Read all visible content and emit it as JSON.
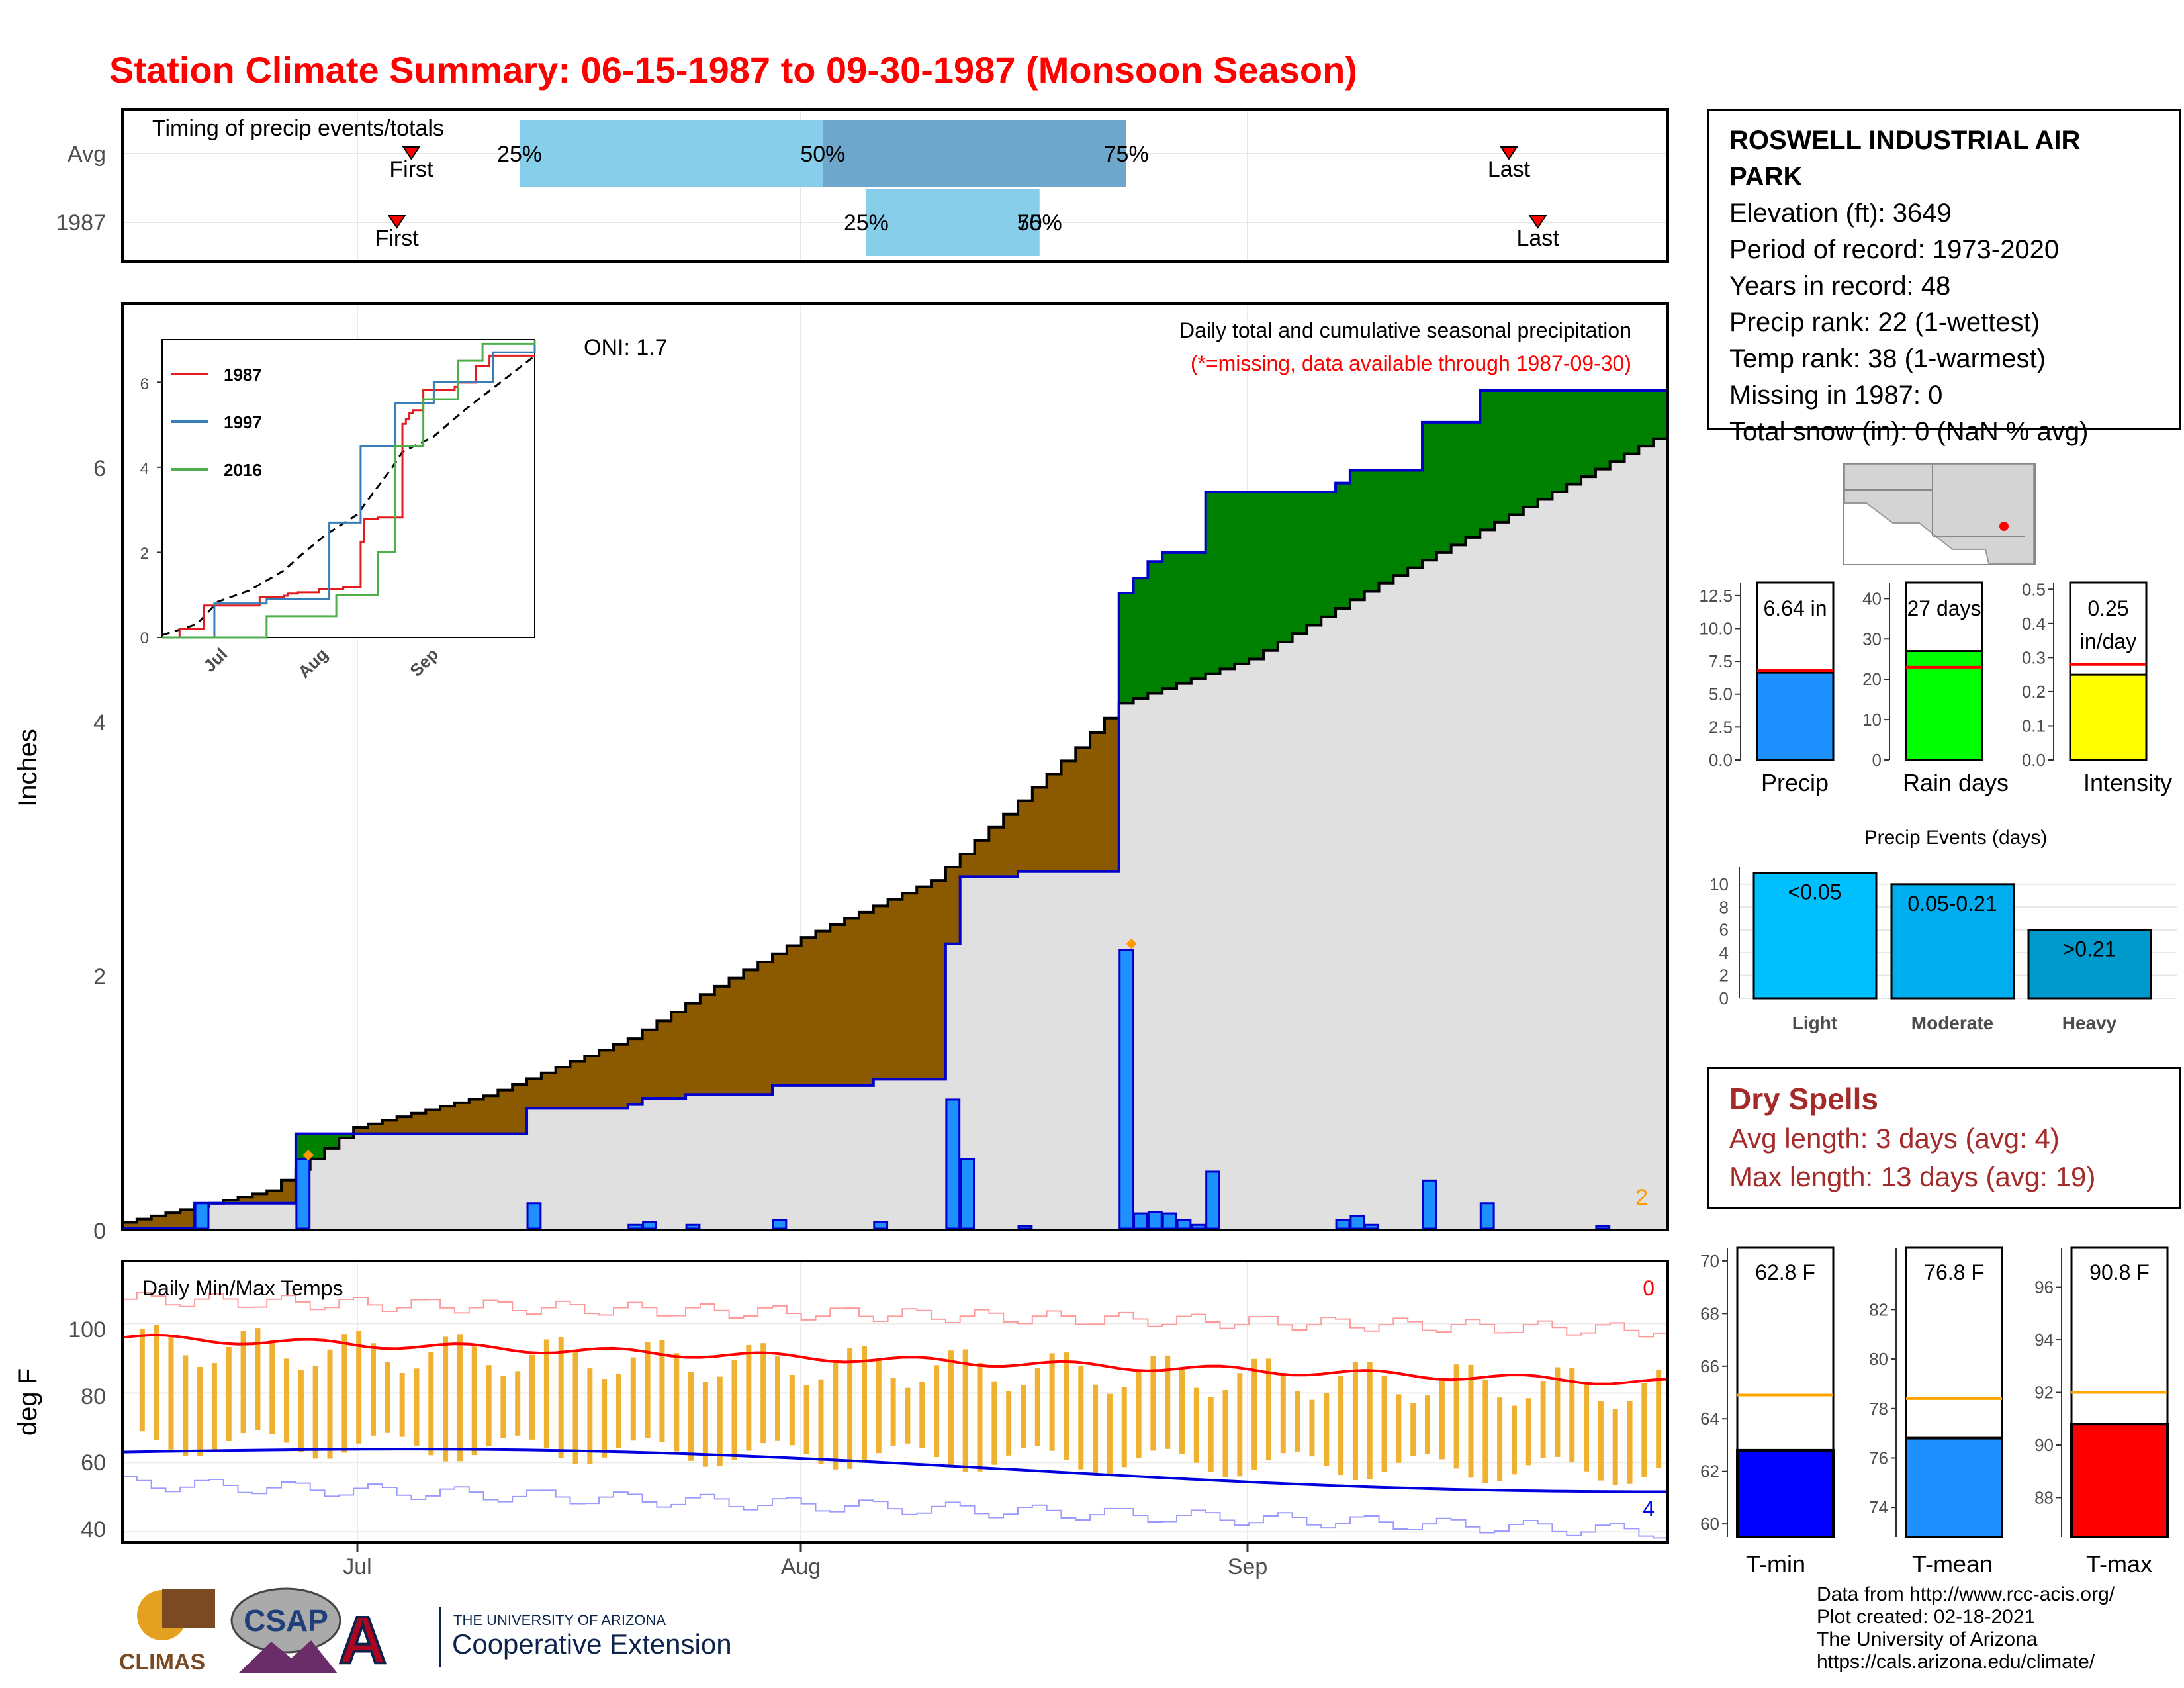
{
  "title": "Station Climate Summary: 06-15-1987 to 09-30-1987 (Monsoon Season)",
  "timing": {
    "title": "Timing of precip events/totals",
    "rows": [
      {
        "label": "Avg",
        "first_label": "First",
        "last_label": "Last",
        "first_day": 20,
        "last_day": 96,
        "p25_label": "25%",
        "p50_label": "50%",
        "p75_label": "75%",
        "p25": 27.5,
        "p50": 48.5,
        "p75": 69.5
      },
      {
        "label": "1987",
        "first_label": "First",
        "last_label": "Last",
        "first_day": 19,
        "last_day": 98,
        "p25_label": "25%",
        "p50_label": "50%",
        "p75_label": "75%",
        "p25": 51.5,
        "p50": 63.5,
        "p75": 63.5
      }
    ]
  },
  "months": [
    "Jul",
    "Aug",
    "Sep"
  ],
  "precip_panel": {
    "ylabel": "Inches",
    "oni": "ONI: 1.7",
    "note1": "Daily total and cumulative seasonal precipitation",
    "note2": "(*=missing, data available through 1987-09-30)",
    "missing_count": "2",
    "yticks": [
      "0",
      "2",
      "4",
      "6"
    ]
  },
  "inset": {
    "yticks": [
      "0",
      "2",
      "4",
      "6"
    ],
    "months": [
      "Jul",
      "Aug",
      "Sep"
    ],
    "legend": [
      {
        "name": "1987",
        "color": "#e41a1c"
      },
      {
        "name": "1997",
        "color": "#377eb8"
      },
      {
        "name": "2016",
        "color": "#4daf4a"
      }
    ]
  },
  "temp_panel": {
    "title": "Daily Min/Max Temps",
    "ylabel": "deg F",
    "yticks": [
      "40",
      "60",
      "80",
      "100"
    ],
    "count_max": "0",
    "count_min": "4"
  },
  "station": {
    "name_line1": "ROSWELL INDUSTRIAL AIR",
    "name_line2": "PARK",
    "elevation": "Elevation (ft): 3649",
    "period": "Period of record: 1973-2020",
    "years": "Years in record: 48",
    "precip_rank": "Precip rank: 22 (1-wettest)",
    "temp_rank": "Temp rank: 38 (1-warmest)",
    "missing": "Missing in 1987: 0",
    "snow": "Total snow (in): 0 (NaN % avg)"
  },
  "summary_bars": [
    {
      "label": "Precip",
      "value_text": "6.64 in",
      "value": 6.64,
      "avg": 6.8,
      "max": 13.5,
      "ticks": [
        "0.0",
        "2.5",
        "5.0",
        "7.5",
        "10.0",
        "12.5"
      ],
      "tickvals": [
        0,
        2.5,
        5,
        7.5,
        10,
        12.5
      ],
      "color": "#1e90ff"
    },
    {
      "label": "Rain days",
      "value_text": "27 days",
      "value": 27,
      "avg": 23,
      "max": 44,
      "ticks": [
        "0",
        "10",
        "20",
        "30",
        "40"
      ],
      "tickvals": [
        0,
        10,
        20,
        30,
        40
      ],
      "color": "#00ff00"
    },
    {
      "label": "Intensity",
      "value_text": "0.25",
      "value_text2": "in/day",
      "value": 0.25,
      "avg": 0.28,
      "max": 0.52,
      "ticks": [
        "0.0",
        "0.1",
        "0.2",
        "0.3",
        "0.4",
        "0.5"
      ],
      "tickvals": [
        0,
        0.1,
        0.2,
        0.3,
        0.4,
        0.5
      ],
      "color": "#ffff00"
    }
  ],
  "precip_events": {
    "title": "Precip Events (days)",
    "ticks": [
      "0",
      "2",
      "4",
      "6",
      "8",
      "10"
    ],
    "bars": [
      {
        "category": "Light",
        "label": "<0.05",
        "value": 11,
        "color": "#00bfff"
      },
      {
        "category": "Moderate",
        "label": "0.05-0.21",
        "value": 10,
        "color": "#00aeef"
      },
      {
        "category": "Heavy",
        "label": ">0.21",
        "value": 6,
        "color": "#0099cc"
      }
    ]
  },
  "dry_spells": {
    "title": "Dry Spells",
    "avg": "Avg length: 3 days (avg: 4)",
    "max": "Max length: 13 days (avg: 19)"
  },
  "temp_bars": [
    {
      "label": "T-min",
      "value_text": "62.8 F",
      "value": 62.8,
      "avg": 64.9,
      "min": 59.5,
      "max": 70.5,
      "ticks": [
        "60",
        "62",
        "64",
        "66",
        "68",
        "70"
      ],
      "tickvals": [
        60,
        62,
        64,
        66,
        68,
        70
      ],
      "color": "#0000ff"
    },
    {
      "label": "T-mean",
      "value_text": "76.8 F",
      "value": 76.8,
      "avg": 78.4,
      "min": 72.8,
      "max": 84.5,
      "ticks": [
        "74",
        "76",
        "78",
        "80",
        "82"
      ],
      "tickvals": [
        74,
        76,
        78,
        80,
        82
      ],
      "color": "#1e90ff"
    },
    {
      "label": "T-max",
      "value_text": "90.8 F",
      "value": 90.8,
      "avg": 92.0,
      "min": 86.5,
      "max": 97.5,
      "ticks": [
        "88",
        "90",
        "92",
        "94",
        "96"
      ],
      "tickvals": [
        88,
        90,
        92,
        94,
        96
      ],
      "color": "#ff0000"
    }
  ],
  "credits": {
    "line1": "Data from http://www.rcc-acis.org/",
    "line2": "Plot created: 02-18-2021",
    "line3": "The University of Arizona",
    "line4": "https://cals.arizona.edu/climate/"
  },
  "logos": {
    "climas": "CLIMAS",
    "csap": "CSAP",
    "ua_small": "THE UNIVERSITY OF ARIZONA",
    "ua_big": "Cooperative Extension"
  },
  "chart_data": [
    {
      "type": "area",
      "title": "Daily total and cumulative seasonal precipitation",
      "ylabel": "Inches",
      "x_start": "1987-06-15",
      "x_end": "1987-09-30",
      "ylim": [
        0,
        7.3
      ],
      "daily_precip": [
        {
          "date": "1987-06-20",
          "value": 0.2
        },
        {
          "date": "1987-06-27",
          "value": 0.55
        },
        {
          "date": "1987-07-13",
          "value": 0.2
        },
        {
          "date": "1987-07-20",
          "value": 0.03
        },
        {
          "date": "1987-07-21",
          "value": 0.05
        },
        {
          "date": "1987-07-24",
          "value": 0.03
        },
        {
          "date": "1987-07-30",
          "value": 0.07
        },
        {
          "date": "1987-08-06",
          "value": 0.05
        },
        {
          "date": "1987-08-11",
          "value": 1.02
        },
        {
          "date": "1987-08-12",
          "value": 0.55
        },
        {
          "date": "1987-08-16",
          "value": 0.02
        },
        {
          "date": "1987-08-23",
          "value": 2.2
        },
        {
          "date": "1987-08-24",
          "value": 0.12
        },
        {
          "date": "1987-08-25",
          "value": 0.13
        },
        {
          "date": "1987-08-26",
          "value": 0.12
        },
        {
          "date": "1987-08-27",
          "value": 0.07
        },
        {
          "date": "1987-08-28",
          "value": 0.03
        },
        {
          "date": "1987-08-29",
          "value": 0.45
        },
        {
          "date": "1987-09-07",
          "value": 0.07
        },
        {
          "date": "1987-09-08",
          "value": 0.1
        },
        {
          "date": "1987-09-09",
          "value": 0.03
        },
        {
          "date": "1987-09-13",
          "value": 0.38
        },
        {
          "date": "1987-09-17",
          "value": 0.2
        },
        {
          "date": "1987-09-25",
          "value": 0.02
        }
      ],
      "cumulative_1987": [
        [
          "1987-06-15",
          0.0
        ],
        [
          "1987-06-20",
          0.2
        ],
        [
          "1987-06-27",
          0.75
        ],
        [
          "1987-07-13",
          0.95
        ],
        [
          "1987-07-20",
          0.98
        ],
        [
          "1987-07-21",
          1.03
        ],
        [
          "1987-07-24",
          1.06
        ],
        [
          "1987-07-30",
          1.13
        ],
        [
          "1987-08-06",
          1.18
        ],
        [
          "1987-08-11",
          2.25
        ],
        [
          "1987-08-12",
          2.78
        ],
        [
          "1987-08-16",
          2.82
        ],
        [
          "1987-08-23",
          5.02
        ],
        [
          "1987-08-24",
          5.14
        ],
        [
          "1987-08-25",
          5.27
        ],
        [
          "1987-08-26",
          5.34
        ],
        [
          "1987-08-29",
          5.82
        ],
        [
          "1987-09-07",
          5.89
        ],
        [
          "1987-09-08",
          5.99
        ],
        [
          "1987-09-13",
          6.37
        ],
        [
          "1987-09-17",
          6.62
        ],
        [
          "1987-09-30",
          6.64
        ]
      ],
      "cumulative_avg": [
        [
          "1987-06-15",
          0.05
        ],
        [
          "1987-06-25",
          0.3
        ],
        [
          "1987-07-01",
          0.8
        ],
        [
          "1987-07-10",
          1.05
        ],
        [
          "1987-07-20",
          1.5
        ],
        [
          "1987-07-25",
          1.85
        ],
        [
          "1987-08-01",
          2.3
        ],
        [
          "1987-08-10",
          2.75
        ],
        [
          "1987-08-20",
          3.8
        ],
        [
          "1987-08-23",
          4.15
        ],
        [
          "1987-09-01",
          4.5
        ],
        [
          "1987-09-10",
          5.1
        ],
        [
          "1987-09-20",
          5.7
        ],
        [
          "1987-09-30",
          6.3
        ]
      ]
    },
    {
      "type": "line",
      "title": "Daily Min/Max Temps",
      "ylabel": "deg F",
      "ylim": [
        37,
        118
      ],
      "avg_max_range": [
        96,
        83
      ],
      "avg_min_range": [
        63,
        54
      ],
      "record_max_range": [
        107,
        98
      ],
      "record_min_range": [
        54,
        40
      ]
    }
  ]
}
